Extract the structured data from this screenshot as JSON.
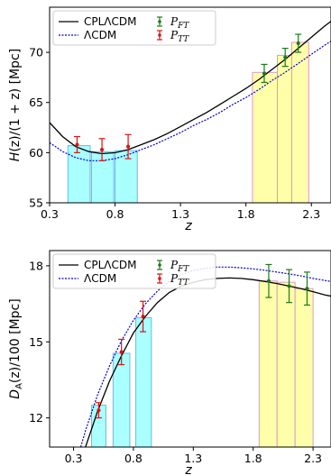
{
  "colors": {
    "cpl_line": "#000000",
    "lcdm_line": "#0000cc",
    "pft_marker": "#1a7a1a",
    "ptt_marker": "#dd1111",
    "low_z_bar": "#aaffff",
    "low_z_bar_edge": "#66bbee",
    "high_z_bar": "#ffffaa",
    "high_z_bar_edge": "#dd99cc"
  },
  "chart_data": [
    {
      "type": "line",
      "xlabel": "z",
      "ylabel": "H(z)/(1 + z) [Mpc]",
      "xlim": [
        0.3,
        2.45
      ],
      "ylim": [
        55,
        74.5
      ],
      "xticks": [
        0.3,
        0.8,
        1.3,
        1.8,
        2.3
      ],
      "xtick_labels": [
        "0.3",
        "0.8",
        "1.3",
        "1.8",
        "2.3"
      ],
      "yticks": [
        55,
        60,
        65,
        70
      ],
      "ytick_labels": [
        "55",
        "60",
        "65",
        "70"
      ],
      "legend": {
        "placement": "top-left",
        "entries": [
          {
            "label": "CPLΛCDM",
            "style": "solid"
          },
          {
            "label": "ΛCDM",
            "style": "dotted"
          },
          {
            "label": "P",
            "sub": "FT",
            "style": "errorbar-green"
          },
          {
            "label": "P",
            "sub": "TT",
            "style": "errorbar-red"
          }
        ]
      },
      "series": [
        {
          "name": "CPLΛCDM",
          "style": "solid",
          "x": [
            0.3,
            0.4,
            0.5,
            0.6,
            0.7,
            0.8,
            0.9,
            1.0,
            1.1,
            1.2,
            1.3,
            1.4,
            1.5,
            1.6,
            1.7,
            1.8,
            1.9,
            2.0,
            2.1,
            2.2,
            2.3,
            2.4,
            2.45
          ],
          "y": [
            63.0,
            61.6,
            60.6,
            60.1,
            59.9,
            60.0,
            60.3,
            60.8,
            61.3,
            61.9,
            62.6,
            63.3,
            64.0,
            64.8,
            65.6,
            66.4,
            67.3,
            68.3,
            69.3,
            70.4,
            71.5,
            72.6,
            73.1
          ]
        },
        {
          "name": "ΛCDM",
          "style": "dotted",
          "x": [
            0.3,
            0.4,
            0.5,
            0.6,
            0.7,
            0.8,
            0.9,
            1.0,
            1.1,
            1.2,
            1.3,
            1.4,
            1.5,
            1.6,
            1.7,
            1.8,
            1.9,
            2.0,
            2.1,
            2.2,
            2.3,
            2.4,
            2.45
          ],
          "y": [
            61.0,
            60.1,
            59.5,
            59.2,
            59.2,
            59.4,
            59.8,
            60.3,
            60.8,
            61.4,
            62.0,
            62.7,
            63.3,
            64.0,
            64.8,
            65.5,
            66.3,
            67.2,
            68.0,
            68.9,
            69.8,
            70.7,
            71.1
          ]
        },
        {
          "name": "P_TT",
          "style": "errorbar",
          "x": [
            0.51,
            0.7,
            0.9
          ],
          "y": [
            60.8,
            60.3,
            60.6
          ],
          "err": [
            0.8,
            1.1,
            1.2
          ]
        },
        {
          "name": "P_FT",
          "style": "errorbar",
          "x": [
            1.94,
            2.1,
            2.2
          ],
          "y": [
            67.9,
            69.5,
            70.9
          ],
          "err": [
            0.9,
            0.9,
            0.9
          ]
        },
        {
          "name": "low-z bins",
          "style": "bar",
          "bars": [
            {
              "x0": 0.44,
              "x1": 0.61,
              "y": 60.7
            },
            {
              "x0": 0.62,
              "x1": 0.79,
              "y": 60.1
            },
            {
              "x0": 0.8,
              "x1": 0.97,
              "y": 60.2
            }
          ]
        },
        {
          "name": "high-z bins",
          "style": "bar",
          "bars": [
            {
              "x0": 1.85,
              "x1": 2.04,
              "y": 68.0
            },
            {
              "x0": 2.04,
              "x1": 2.15,
              "y": 69.7
            },
            {
              "x0": 2.15,
              "x1": 2.28,
              "y": 71.0
            }
          ]
        }
      ]
    },
    {
      "type": "line",
      "xlabel": "z",
      "ylabel": "D_A(z)/100 [Mpc]",
      "xlim": [
        0.1,
        2.45
      ],
      "ylim": [
        10.85,
        18.6
      ],
      "xticks": [
        0.3,
        0.8,
        1.3,
        1.8,
        2.3
      ],
      "xtick_labels": [
        "0.3",
        "0.8",
        "1.3",
        "1.8",
        "2.3"
      ],
      "yticks": [
        12,
        15,
        18
      ],
      "ytick_labels": [
        "12",
        "15",
        "18"
      ],
      "legend": {
        "placement": "top-left",
        "entries": [
          {
            "label": "CPLΛCDM",
            "style": "solid"
          },
          {
            "label": "ΛCDM",
            "style": "dotted"
          },
          {
            "label": "P",
            "sub": "FT",
            "style": "errorbar-green"
          },
          {
            "label": "P",
            "sub": "TT",
            "style": "errorbar-red"
          }
        ]
      },
      "series": [
        {
          "name": "CPLΛCDM",
          "style": "solid",
          "x": [
            0.4,
            0.5,
            0.6,
            0.7,
            0.8,
            0.9,
            1.0,
            1.1,
            1.2,
            1.3,
            1.4,
            1.5,
            1.6,
            1.7,
            1.8,
            1.9,
            2.0,
            2.1,
            2.2,
            2.3,
            2.4,
            2.45
          ],
          "y": [
            10.85,
            12.25,
            13.45,
            14.45,
            15.35,
            16.0,
            16.55,
            16.95,
            17.2,
            17.35,
            17.45,
            17.5,
            17.52,
            17.5,
            17.45,
            17.38,
            17.3,
            17.2,
            17.1,
            16.98,
            16.85,
            16.8
          ]
        },
        {
          "name": "ΛCDM",
          "style": "dotted",
          "x": [
            0.36,
            0.4,
            0.5,
            0.6,
            0.7,
            0.8,
            0.9,
            1.0,
            1.1,
            1.2,
            1.3,
            1.4,
            1.5,
            1.6,
            1.7,
            1.8,
            1.9,
            2.0,
            2.1,
            2.2,
            2.3,
            2.4,
            2.45
          ],
          "y": [
            10.85,
            11.5,
            12.9,
            14.05,
            15.05,
            15.85,
            16.5,
            17.0,
            17.4,
            17.65,
            17.82,
            17.9,
            17.95,
            17.95,
            17.92,
            17.88,
            17.82,
            17.75,
            17.68,
            17.6,
            17.5,
            17.42,
            17.38
          ]
        },
        {
          "name": "P_TT",
          "style": "errorbar",
          "x": [
            0.51,
            0.7,
            0.88
          ],
          "y": [
            12.3,
            14.6,
            16.0
          ],
          "err": [
            0.3,
            0.5,
            0.6
          ]
        },
        {
          "name": "P_FT",
          "style": "errorbar",
          "x": [
            1.93,
            2.1,
            2.25
          ],
          "y": [
            17.4,
            17.2,
            17.1
          ],
          "err": [
            0.65,
            0.65,
            0.65
          ]
        },
        {
          "name": "low-z bins",
          "style": "bar",
          "bars": [
            {
              "x0": 0.45,
              "x1": 0.57,
              "y": 12.5
            },
            {
              "x0": 0.63,
              "x1": 0.77,
              "y": 14.55
            },
            {
              "x0": 0.82,
              "x1": 0.95,
              "y": 15.95
            }
          ]
        },
        {
          "name": "high-z bins",
          "style": "bar",
          "bars": [
            {
              "x0": 1.85,
              "x1": 2.0,
              "y": 17.4
            },
            {
              "x0": 2.0,
              "x1": 2.15,
              "y": 17.35
            },
            {
              "x0": 2.15,
              "x1": 2.3,
              "y": 17.1
            }
          ]
        }
      ]
    }
  ]
}
